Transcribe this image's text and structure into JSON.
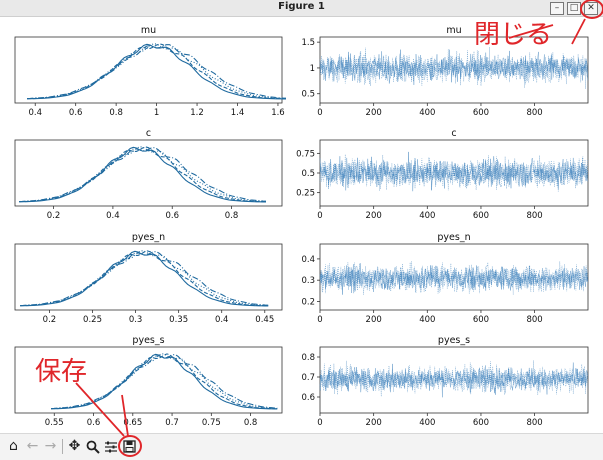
{
  "window": {
    "title": "Figure 1",
    "controls": {
      "minimize": "–",
      "maximize": "□",
      "close": "✕"
    }
  },
  "annotations": {
    "close_label": "閉じる",
    "save_label": "保存",
    "color": "#e0262a"
  },
  "toolbar": {
    "icons": [
      "home-icon",
      "back-arrow-icon",
      "forward-arrow-icon",
      "pan-icon",
      "zoom-icon",
      "subplots-config-icon",
      "save-icon"
    ]
  },
  "colors": {
    "trace": "#3a7fba",
    "density": "#1f6a9f"
  },
  "chart_data": [
    {
      "type": "line",
      "title": "mu",
      "kind": "density",
      "xlim": [
        0.3,
        1.62
      ],
      "xticks": [
        0.4,
        0.6,
        0.8,
        1.0,
        1.2,
        1.4,
        1.6
      ],
      "mean": 1.0,
      "sd": 0.2,
      "grid": false
    },
    {
      "type": "line",
      "title": "mu",
      "kind": "trace",
      "xlim": [
        0,
        999
      ],
      "xticks": [
        0,
        200,
        400,
        600,
        800
      ],
      "ylim": [
        0.32,
        1.6
      ],
      "yticks": [
        0.5,
        1.0,
        1.5
      ],
      "mean": 1.0,
      "sd": 0.2,
      "grid": false
    },
    {
      "type": "line",
      "title": "c",
      "kind": "density",
      "xlim": [
        0.07,
        0.97
      ],
      "xticks": [
        0.2,
        0.4,
        0.6,
        0.8
      ],
      "mean": 0.5,
      "sd": 0.13,
      "grid": false
    },
    {
      "type": "line",
      "title": "c",
      "kind": "trace",
      "xlim": [
        0,
        999
      ],
      "xticks": [
        0,
        200,
        400,
        600,
        800
      ],
      "ylim": [
        0.08,
        0.92
      ],
      "yticks": [
        0.25,
        0.5,
        0.75
      ],
      "mean": 0.5,
      "sd": 0.13,
      "grid": false
    },
    {
      "type": "line",
      "title": "pyes_n",
      "kind": "density",
      "xlim": [
        0.16,
        0.47
      ],
      "xticks": [
        0.2,
        0.25,
        0.3,
        0.35,
        0.4,
        0.45
      ],
      "mean": 0.31,
      "sd": 0.045,
      "grid": false
    },
    {
      "type": "line",
      "title": "pyes_n",
      "kind": "trace",
      "xlim": [
        0,
        999
      ],
      "xticks": [
        0,
        200,
        400,
        600,
        800
      ],
      "ylim": [
        0.16,
        0.47
      ],
      "yticks": [
        0.2,
        0.3,
        0.4
      ],
      "mean": 0.31,
      "sd": 0.045,
      "grid": false
    },
    {
      "type": "line",
      "title": "pyes_s",
      "kind": "density",
      "xlim": [
        0.5,
        0.84
      ],
      "xticks": [
        0.55,
        0.6,
        0.65,
        0.7,
        0.75,
        0.8
      ],
      "mean": 0.69,
      "sd": 0.045,
      "grid": false
    },
    {
      "type": "line",
      "title": "pyes_s",
      "kind": "trace",
      "xlim": [
        0,
        999
      ],
      "xticks": [
        0,
        200,
        400,
        600,
        800
      ],
      "ylim": [
        0.52,
        0.85
      ],
      "yticks": [
        0.6,
        0.7,
        0.8
      ],
      "mean": 0.69,
      "sd": 0.045,
      "grid": false
    }
  ]
}
